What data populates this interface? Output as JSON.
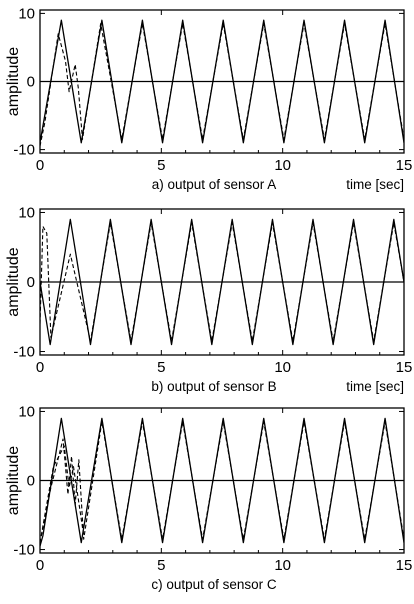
{
  "chart_data": [
    {
      "type": "line",
      "caption": "a) output of sensor A",
      "xlabel": "time [sec]",
      "ylabel": "amplitude",
      "xlim": [
        0,
        15
      ],
      "ylim": [
        -10.5,
        10.5
      ],
      "xticks": [
        0,
        5,
        10,
        15
      ],
      "yticks": [
        -10,
        0,
        10
      ],
      "grid": false,
      "series": [
        {
          "style": "solid",
          "x": [
            0,
            0.88,
            1.7,
            2.55,
            3.37,
            4.22,
            5.05,
            5.88,
            6.7,
            7.55,
            8.38,
            9.22,
            10.05,
            10.88,
            11.72,
            12.55,
            13.38,
            14.22,
            15
          ],
          "y": [
            -9,
            9,
            -9,
            9,
            -9,
            9,
            -9,
            9,
            -9,
            9,
            -9,
            9,
            -9,
            9,
            -9,
            9,
            -9,
            9,
            -9
          ]
        },
        {
          "style": "dashed",
          "x": [
            0,
            0.2,
            0.75,
            1.05,
            1.2,
            1.45,
            1.58,
            1.75,
            2.5,
            3.37,
            4.22,
            5.05,
            5.88,
            6.7,
            7.55,
            8.38,
            9.22,
            10.05,
            10.88,
            11.72,
            12.55,
            13.38,
            14.22,
            15
          ],
          "y": [
            -9.5,
            -6,
            7,
            3,
            -1.5,
            2.5,
            -1,
            -8.5,
            8.5,
            -8.5,
            8.5,
            -8.5,
            8.5,
            -8.5,
            8.5,
            -8.5,
            8.5,
            -8.5,
            8.5,
            -8.5,
            8.5,
            -8.5,
            8.5,
            -8.5
          ]
        }
      ]
    },
    {
      "type": "line",
      "caption": "b) output of sensor B",
      "xlabel": "time [sec]",
      "ylabel": "amplitude",
      "xlim": [
        0,
        15
      ],
      "ylim": [
        -10.5,
        10.5
      ],
      "xticks": [
        0,
        5,
        10,
        15
      ],
      "yticks": [
        -10,
        0,
        10
      ],
      "grid": false,
      "series": [
        {
          "style": "solid",
          "x": [
            0,
            0.42,
            1.25,
            2.08,
            2.9,
            3.75,
            4.58,
            5.42,
            6.25,
            7.08,
            7.92,
            8.75,
            9.58,
            10.42,
            11.25,
            12.08,
            12.92,
            13.75,
            14.58,
            15
          ],
          "y": [
            0,
            -9,
            9,
            -9,
            9,
            -9,
            9,
            -9,
            9,
            -9,
            9,
            -9,
            9,
            -9,
            9,
            -9,
            9,
            -9,
            9,
            0
          ]
        },
        {
          "style": "dashed",
          "x": [
            0,
            0.12,
            0.28,
            0.45,
            1.25,
            1.85,
            2.08,
            2.9,
            3.75,
            4.58,
            5.42,
            6.25,
            7.08,
            7.92,
            8.75,
            9.58,
            10.42,
            11.25,
            12.08,
            12.92,
            13.75,
            14.58,
            15
          ],
          "y": [
            -6,
            8,
            7,
            -8,
            4,
            -5,
            -8.5,
            8.5,
            -8.5,
            8.5,
            -8.5,
            8.5,
            -8.5,
            8.5,
            -8.5,
            8.5,
            -8.5,
            8.5,
            -8.5,
            8.5,
            -8.5,
            8.5,
            0
          ]
        }
      ]
    },
    {
      "type": "line",
      "caption": "c) output of sensor C",
      "xlabel": "",
      "ylabel": "amplitude",
      "xlim": [
        0,
        15
      ],
      "ylim": [
        -10.5,
        10.5
      ],
      "xticks": [
        0,
        5,
        10,
        15
      ],
      "yticks": [
        -10,
        0,
        10
      ],
      "grid": false,
      "series": [
        {
          "style": "solid",
          "x": [
            0,
            0.12,
            0.88,
            1.7,
            2.55,
            3.37,
            4.22,
            5.05,
            5.88,
            6.7,
            7.55,
            8.38,
            9.22,
            10.05,
            10.88,
            11.72,
            12.55,
            13.38,
            14.22,
            15
          ],
          "y": [
            -9.5,
            -8,
            9,
            -9,
            9,
            -9,
            9,
            -9,
            9,
            -9,
            9,
            -9,
            9,
            -9,
            9,
            -9,
            9,
            -9,
            9,
            -9
          ]
        },
        {
          "style": "dashed",
          "x": [
            0,
            0.45,
            0.95,
            1.15,
            1.3,
            1.45,
            1.6,
            1.8,
            2.55,
            3.37,
            4.22,
            5.05,
            5.88,
            6.7,
            7.55,
            8.38,
            9.22,
            10.05,
            10.88,
            11.72,
            12.55,
            13.38,
            14.22,
            15
          ],
          "y": [
            -9,
            -1,
            6,
            -2,
            3.5,
            -3.5,
            3,
            -8.5,
            8.5,
            -8.5,
            8.5,
            -8.5,
            8.5,
            -8.5,
            8.5,
            -8.5,
            8.5,
            -8.5,
            8.5,
            -8.5,
            8.5,
            -8.5,
            8.5,
            -8.5
          ]
        },
        {
          "style": "dashed",
          "x": [
            0.05,
            0.55,
            1.0,
            1.2,
            1.38,
            1.55,
            1.8
          ],
          "y": [
            -8,
            2,
            5,
            -1,
            2,
            -2,
            -8
          ]
        }
      ]
    }
  ]
}
